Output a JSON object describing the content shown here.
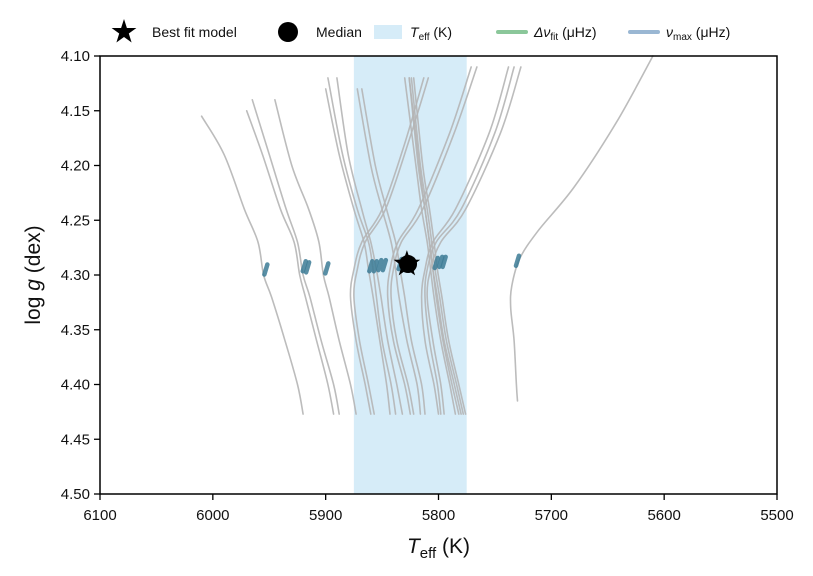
{
  "chart_data": {
    "type": "line",
    "title": "",
    "xlabel": {
      "symbol": "T",
      "sub": "eff",
      "unit": " (K)"
    },
    "ylabel": {
      "prefix": "log ",
      "symbol": "g",
      "unit": " (dex)"
    },
    "xlim": [
      6100,
      5500
    ],
    "ylim": [
      4.5,
      4.1
    ],
    "x_ticks": [
      "6100",
      "6000",
      "5900",
      "5800",
      "5700",
      "5600",
      "5500"
    ],
    "y_ticks": [
      "4.10",
      "4.15",
      "4.20",
      "4.25",
      "4.30",
      "4.35",
      "4.40",
      "4.45",
      "4.50"
    ],
    "grid": false,
    "legend_position": "top",
    "legend": [
      {
        "key": "best",
        "label": "Best fit model"
      },
      {
        "key": "median",
        "label": "Median"
      },
      {
        "key": "teff",
        "symbol": "T",
        "sub": "eff",
        "suffix": " (K)",
        "color": "#d6ecf8"
      },
      {
        "key": "dnu",
        "symbol": "Δν",
        "sub": "fit",
        "suffix": " (μHz)",
        "color": "#8bc79a"
      },
      {
        "key": "numax",
        "symbol": "ν",
        "sub": "max",
        "suffix": " (μHz)",
        "color": "#9ab7d3"
      }
    ],
    "teff_band": [
      5875,
      5775
    ],
    "best_fit": {
      "x": 5828,
      "y": 4.29
    },
    "median": {
      "x": 5827,
      "y": 4.29
    },
    "track_color": "#b5b5b5",
    "marker_color": "#3d7c96",
    "tracks": [
      {
        "x": [
          5920,
          5925,
          5936,
          5948,
          5955,
          5960,
          5972,
          5990,
          6010
        ],
        "y": [
          4.427,
          4.4,
          4.36,
          4.32,
          4.3,
          4.27,
          4.24,
          4.19,
          4.155
        ]
      },
      {
        "x": [
          5893,
          5898,
          5908,
          5918,
          5923,
          5928,
          5940,
          5956,
          5970
        ],
        "y": [
          4.427,
          4.4,
          4.36,
          4.32,
          4.3,
          4.27,
          4.24,
          4.19,
          4.15
        ]
      },
      {
        "x": [
          5888,
          5893,
          5904,
          5914,
          5920,
          5925,
          5935,
          5950,
          5965
        ],
        "y": [
          4.427,
          4.4,
          4.36,
          4.32,
          4.3,
          4.27,
          4.24,
          4.19,
          4.14
        ]
      },
      {
        "x": [
          5873,
          5878,
          5888,
          5897,
          5902,
          5906,
          5915,
          5930,
          5945
        ],
        "y": [
          4.427,
          4.4,
          4.36,
          4.32,
          4.3,
          4.27,
          4.24,
          4.2,
          4.14
        ]
      },
      {
        "x": [
          5843,
          5846,
          5852,
          5858,
          5862,
          5866,
          5875,
          5888,
          5900
        ],
        "y": [
          4.427,
          4.4,
          4.36,
          4.32,
          4.295,
          4.27,
          4.24,
          4.19,
          4.13
        ]
      },
      {
        "x": [
          5838,
          5842,
          5850,
          5855,
          5858,
          5862,
          5872,
          5885,
          5898
        ],
        "y": [
          4.427,
          4.4,
          4.36,
          4.32,
          4.295,
          4.27,
          4.24,
          4.19,
          4.12
        ]
      },
      {
        "x": [
          5832,
          5837,
          5845,
          5851,
          5855,
          5860,
          5868,
          5880,
          5890
        ],
        "y": [
          4.427,
          4.4,
          4.36,
          4.32,
          4.295,
          4.27,
          4.24,
          4.19,
          4.12
        ]
      },
      {
        "x": [
          5816,
          5819,
          5828,
          5835,
          5838,
          5842,
          5850,
          5860,
          5872
        ],
        "y": [
          4.427,
          4.4,
          4.36,
          4.32,
          4.295,
          4.27,
          4.24,
          4.2,
          4.13
        ]
      },
      {
        "x": [
          5812,
          5815,
          5824,
          5830,
          5834,
          5838,
          5846,
          5856,
          5868
        ],
        "y": [
          4.427,
          4.4,
          4.36,
          4.32,
          4.295,
          4.27,
          4.24,
          4.2,
          4.13
        ]
      },
      {
        "x": [
          5785,
          5790,
          5798,
          5804,
          5807,
          5810,
          5815,
          5820,
          5830
        ],
        "y": [
          4.427,
          4.4,
          4.36,
          4.32,
          4.295,
          4.27,
          4.24,
          4.2,
          4.12
        ]
      },
      {
        "x": [
          5780,
          5786,
          5795,
          5801,
          5805,
          5808,
          5812,
          5817,
          5826
        ],
        "y": [
          4.427,
          4.4,
          4.36,
          4.32,
          4.295,
          4.27,
          4.24,
          4.2,
          4.12
        ]
      },
      {
        "x": [
          5776,
          5782,
          5791,
          5797,
          5801,
          5804,
          5808,
          5814,
          5822
        ],
        "y": [
          4.427,
          4.4,
          4.36,
          4.32,
          4.295,
          4.27,
          4.24,
          4.2,
          4.12
        ]
      },
      {
        "x": [
          5782,
          5788,
          5796,
          5802,
          5805,
          5808,
          5812,
          5818,
          5826
        ],
        "y": [
          4.427,
          4.4,
          4.36,
          4.32,
          4.295,
          4.27,
          4.24,
          4.2,
          4.12
        ]
      },
      {
        "x": [
          5778,
          5784,
          5793,
          5799,
          5803,
          5806,
          5810,
          5816,
          5824
        ],
        "y": [
          4.427,
          4.4,
          4.36,
          4.32,
          4.295,
          4.27,
          4.24,
          4.2,
          4.12
        ]
      },
      {
        "x": [
          5800,
          5804,
          5812,
          5815,
          5812,
          5805,
          5785,
          5755,
          5738
        ],
        "y": [
          4.427,
          4.4,
          4.36,
          4.32,
          4.295,
          4.27,
          4.24,
          4.17,
          4.11
        ]
      },
      {
        "x": [
          5798,
          5801,
          5808,
          5812,
          5810,
          5802,
          5780,
          5750,
          5733
        ],
        "y": [
          4.427,
          4.4,
          4.36,
          4.32,
          4.295,
          4.27,
          4.24,
          4.17,
          4.11
        ]
      },
      {
        "x": [
          5795,
          5798,
          5805,
          5810,
          5807,
          5798,
          5776,
          5745,
          5727
        ],
        "y": [
          4.427,
          4.4,
          4.36,
          4.32,
          4.295,
          4.27,
          4.24,
          4.17,
          4.11
        ]
      },
      {
        "x": [
          5825,
          5830,
          5840,
          5845,
          5843,
          5836,
          5818,
          5790,
          5771
        ],
        "y": [
          4.427,
          4.4,
          4.36,
          4.32,
          4.295,
          4.27,
          4.24,
          4.17,
          4.11
        ]
      },
      {
        "x": [
          5822,
          5827,
          5837,
          5842,
          5840,
          5833,
          5814,
          5786,
          5766
        ],
        "y": [
          4.427,
          4.4,
          4.36,
          4.32,
          4.295,
          4.27,
          4.24,
          4.17,
          4.11
        ]
      },
      {
        "x": [
          5860,
          5865,
          5873,
          5878,
          5875,
          5868,
          5850,
          5830,
          5813
        ],
        "y": [
          4.427,
          4.4,
          4.36,
          4.32,
          4.295,
          4.27,
          4.24,
          4.18,
          4.12
        ]
      },
      {
        "x": [
          5857,
          5862,
          5870,
          5875,
          5872,
          5865,
          5847,
          5827,
          5809
        ],
        "y": [
          4.427,
          4.4,
          4.36,
          4.32,
          4.295,
          4.27,
          4.24,
          4.18,
          4.12
        ]
      },
      {
        "x": [
          5730,
          5731,
          5733,
          5736,
          5735,
          5728,
          5712,
          5680,
          5642,
          5610
        ],
        "y": [
          4.415,
          4.4,
          4.36,
          4.33,
          4.31,
          4.285,
          4.26,
          4.22,
          4.16,
          4.1
        ]
      }
    ],
    "markers": [
      {
        "x": 5953,
        "y": 4.295
      },
      {
        "x": 5916,
        "y": 4.293
      },
      {
        "x": 5919,
        "y": 4.292
      },
      {
        "x": 5899,
        "y": 4.294
      },
      {
        "x": 5860,
        "y": 4.292
      },
      {
        "x": 5856,
        "y": 4.292
      },
      {
        "x": 5852,
        "y": 4.291
      },
      {
        "x": 5848,
        "y": 4.291
      },
      {
        "x": 5834,
        "y": 4.29
      },
      {
        "x": 5830,
        "y": 4.29
      },
      {
        "x": 5826,
        "y": 4.29
      },
      {
        "x": 5802,
        "y": 4.289
      },
      {
        "x": 5798,
        "y": 4.288
      },
      {
        "x": 5795,
        "y": 4.288
      },
      {
        "x": 5730,
        "y": 4.287
      }
    ]
  }
}
